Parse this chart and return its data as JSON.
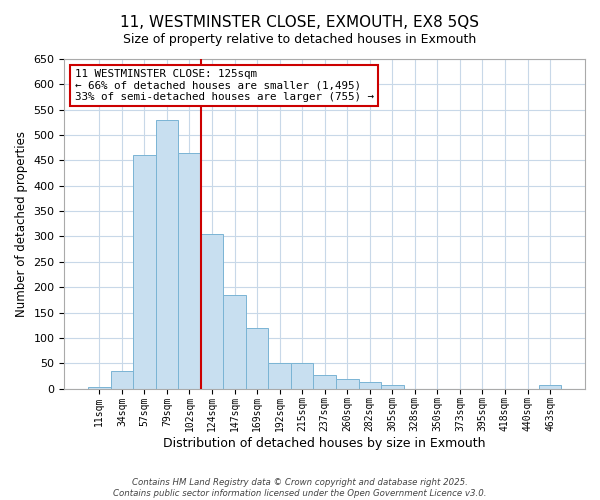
{
  "title": "11, WESTMINSTER CLOSE, EXMOUTH, EX8 5QS",
  "subtitle": "Size of property relative to detached houses in Exmouth",
  "xlabel": "Distribution of detached houses by size in Exmouth",
  "ylabel": "Number of detached properties",
  "bar_labels": [
    "11sqm",
    "34sqm",
    "57sqm",
    "79sqm",
    "102sqm",
    "124sqm",
    "147sqm",
    "169sqm",
    "192sqm",
    "215sqm",
    "237sqm",
    "260sqm",
    "282sqm",
    "305sqm",
    "328sqm",
    "350sqm",
    "373sqm",
    "395sqm",
    "418sqm",
    "440sqm",
    "463sqm"
  ],
  "bar_values": [
    4,
    35,
    460,
    530,
    465,
    305,
    185,
    120,
    50,
    50,
    27,
    18,
    12,
    7,
    0,
    0,
    0,
    0,
    0,
    0,
    7
  ],
  "bar_color": "#c8dff0",
  "bar_edge_color": "#7ab4d4",
  "vline_color": "#cc0000",
  "annotation_title": "11 WESTMINSTER CLOSE: 125sqm",
  "annotation_line1": "← 66% of detached houses are smaller (1,495)",
  "annotation_line2": "33% of semi-detached houses are larger (755) →",
  "annotation_box_color": "#ffffff",
  "annotation_box_edge": "#cc0000",
  "ylim": [
    0,
    650
  ],
  "yticks": [
    0,
    50,
    100,
    150,
    200,
    250,
    300,
    350,
    400,
    450,
    500,
    550,
    600,
    650
  ],
  "footer1": "Contains HM Land Registry data © Crown copyright and database right 2025.",
  "footer2": "Contains public sector information licensed under the Open Government Licence v3.0.",
  "bg_color": "#ffffff",
  "grid_color": "#c8d8e8",
  "title_fontsize": 11,
  "subtitle_fontsize": 9
}
